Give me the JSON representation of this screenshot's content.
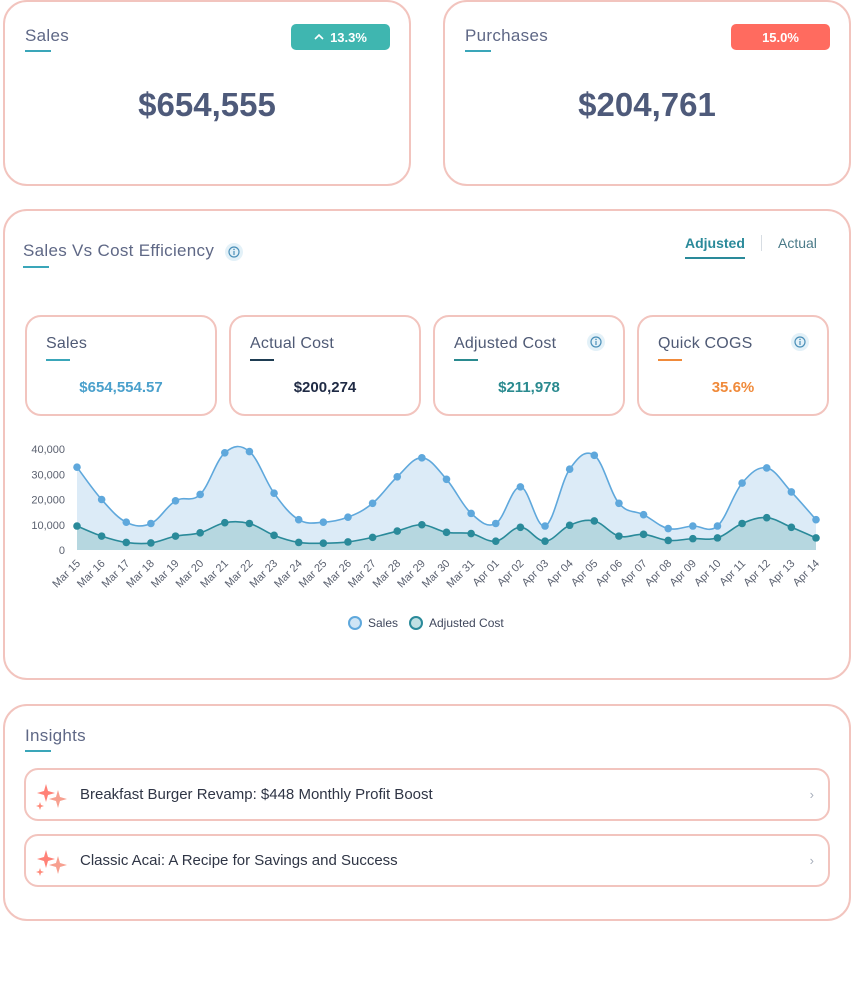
{
  "kpis": {
    "sales": {
      "label": "Sales",
      "value": "$654,555",
      "badge": "13.3%",
      "badge_icon": "chevron-up-icon",
      "badge_color": "#3fb6b0"
    },
    "purchases": {
      "label": "Purchases",
      "value": "$204,761",
      "badge": "15.0%",
      "badge_color": "#ff6b5f"
    }
  },
  "efficiency": {
    "title": "Sales Vs Cost Efficiency",
    "toggle": {
      "adjusted": "Adjusted",
      "actual": "Actual",
      "active": "Adjusted"
    },
    "metrics": [
      {
        "label": "Sales",
        "value": "$654,554.57",
        "color": "#4aa0cc",
        "line_color": "#3aa6b9",
        "info": false
      },
      {
        "label": "Actual Cost",
        "value": "$200,274",
        "color": "#1f2a44",
        "line_color": "#1e3c52",
        "info": false
      },
      {
        "label": "Adjusted Cost",
        "value": "$211,978",
        "color": "#2a8a8f",
        "line_color": "#2a8a8f",
        "info": true
      },
      {
        "label": "Quick COGS",
        "value": "35.6%",
        "color": "#f08a3a",
        "line_color": "#f08a3a",
        "info": true
      }
    ],
    "legend": {
      "sales": "Sales",
      "adjusted": "Adjusted Cost"
    }
  },
  "chart_data": {
    "type": "area",
    "categories": [
      "Mar 15",
      "Mar 16",
      "Mar 17",
      "Mar 18",
      "Mar 19",
      "Mar 20",
      "Mar 21",
      "Mar 22",
      "Mar 23",
      "Mar 24",
      "Mar 25",
      "Mar 26",
      "Mar 27",
      "Mar 28",
      "Mar 29",
      "Mar 30",
      "Mar 31",
      "Apr 01",
      "Apr 02",
      "Apr 03",
      "Apr 04",
      "Apr 05",
      "Apr 06",
      "Apr 07",
      "Apr 08",
      "Apr 09",
      "Apr 10",
      "Apr 11",
      "Apr 12",
      "Apr 13",
      "Apr 14"
    ],
    "series": [
      {
        "name": "Sales",
        "color": "#5fa8dc",
        "values": [
          32800,
          20000,
          11000,
          10500,
          19500,
          22000,
          38500,
          39000,
          22500,
          12000,
          11000,
          13000,
          18500,
          29000,
          36500,
          28000,
          14500,
          10500,
          25000,
          9500,
          32000,
          37500,
          18500,
          14000,
          8500,
          9500,
          9500,
          26500,
          32500,
          23000,
          12000
        ]
      },
      {
        "name": "Adjusted Cost",
        "color": "#2a8a9a",
        "values": [
          9500,
          5500,
          3000,
          2800,
          5500,
          6800,
          10800,
          10500,
          5800,
          3000,
          2700,
          3200,
          5000,
          7500,
          10000,
          7000,
          6500,
          3500,
          9000,
          3500,
          9800,
          11500,
          5500,
          6200,
          3800,
          4500,
          4800,
          10500,
          12800,
          9000,
          4800
        ]
      }
    ],
    "y_ticks": [
      "40,000",
      "30,000",
      "20,000",
      "10,000",
      "0"
    ],
    "ylim": [
      0,
      40000
    ],
    "legend_position": "bottom"
  },
  "insights": {
    "title": "Insights",
    "items": [
      {
        "text": "Breakfast Burger Revamp: $448 Monthly Profit Boost"
      },
      {
        "text": "Classic Acai: A Recipe for Savings and Success"
      }
    ]
  }
}
